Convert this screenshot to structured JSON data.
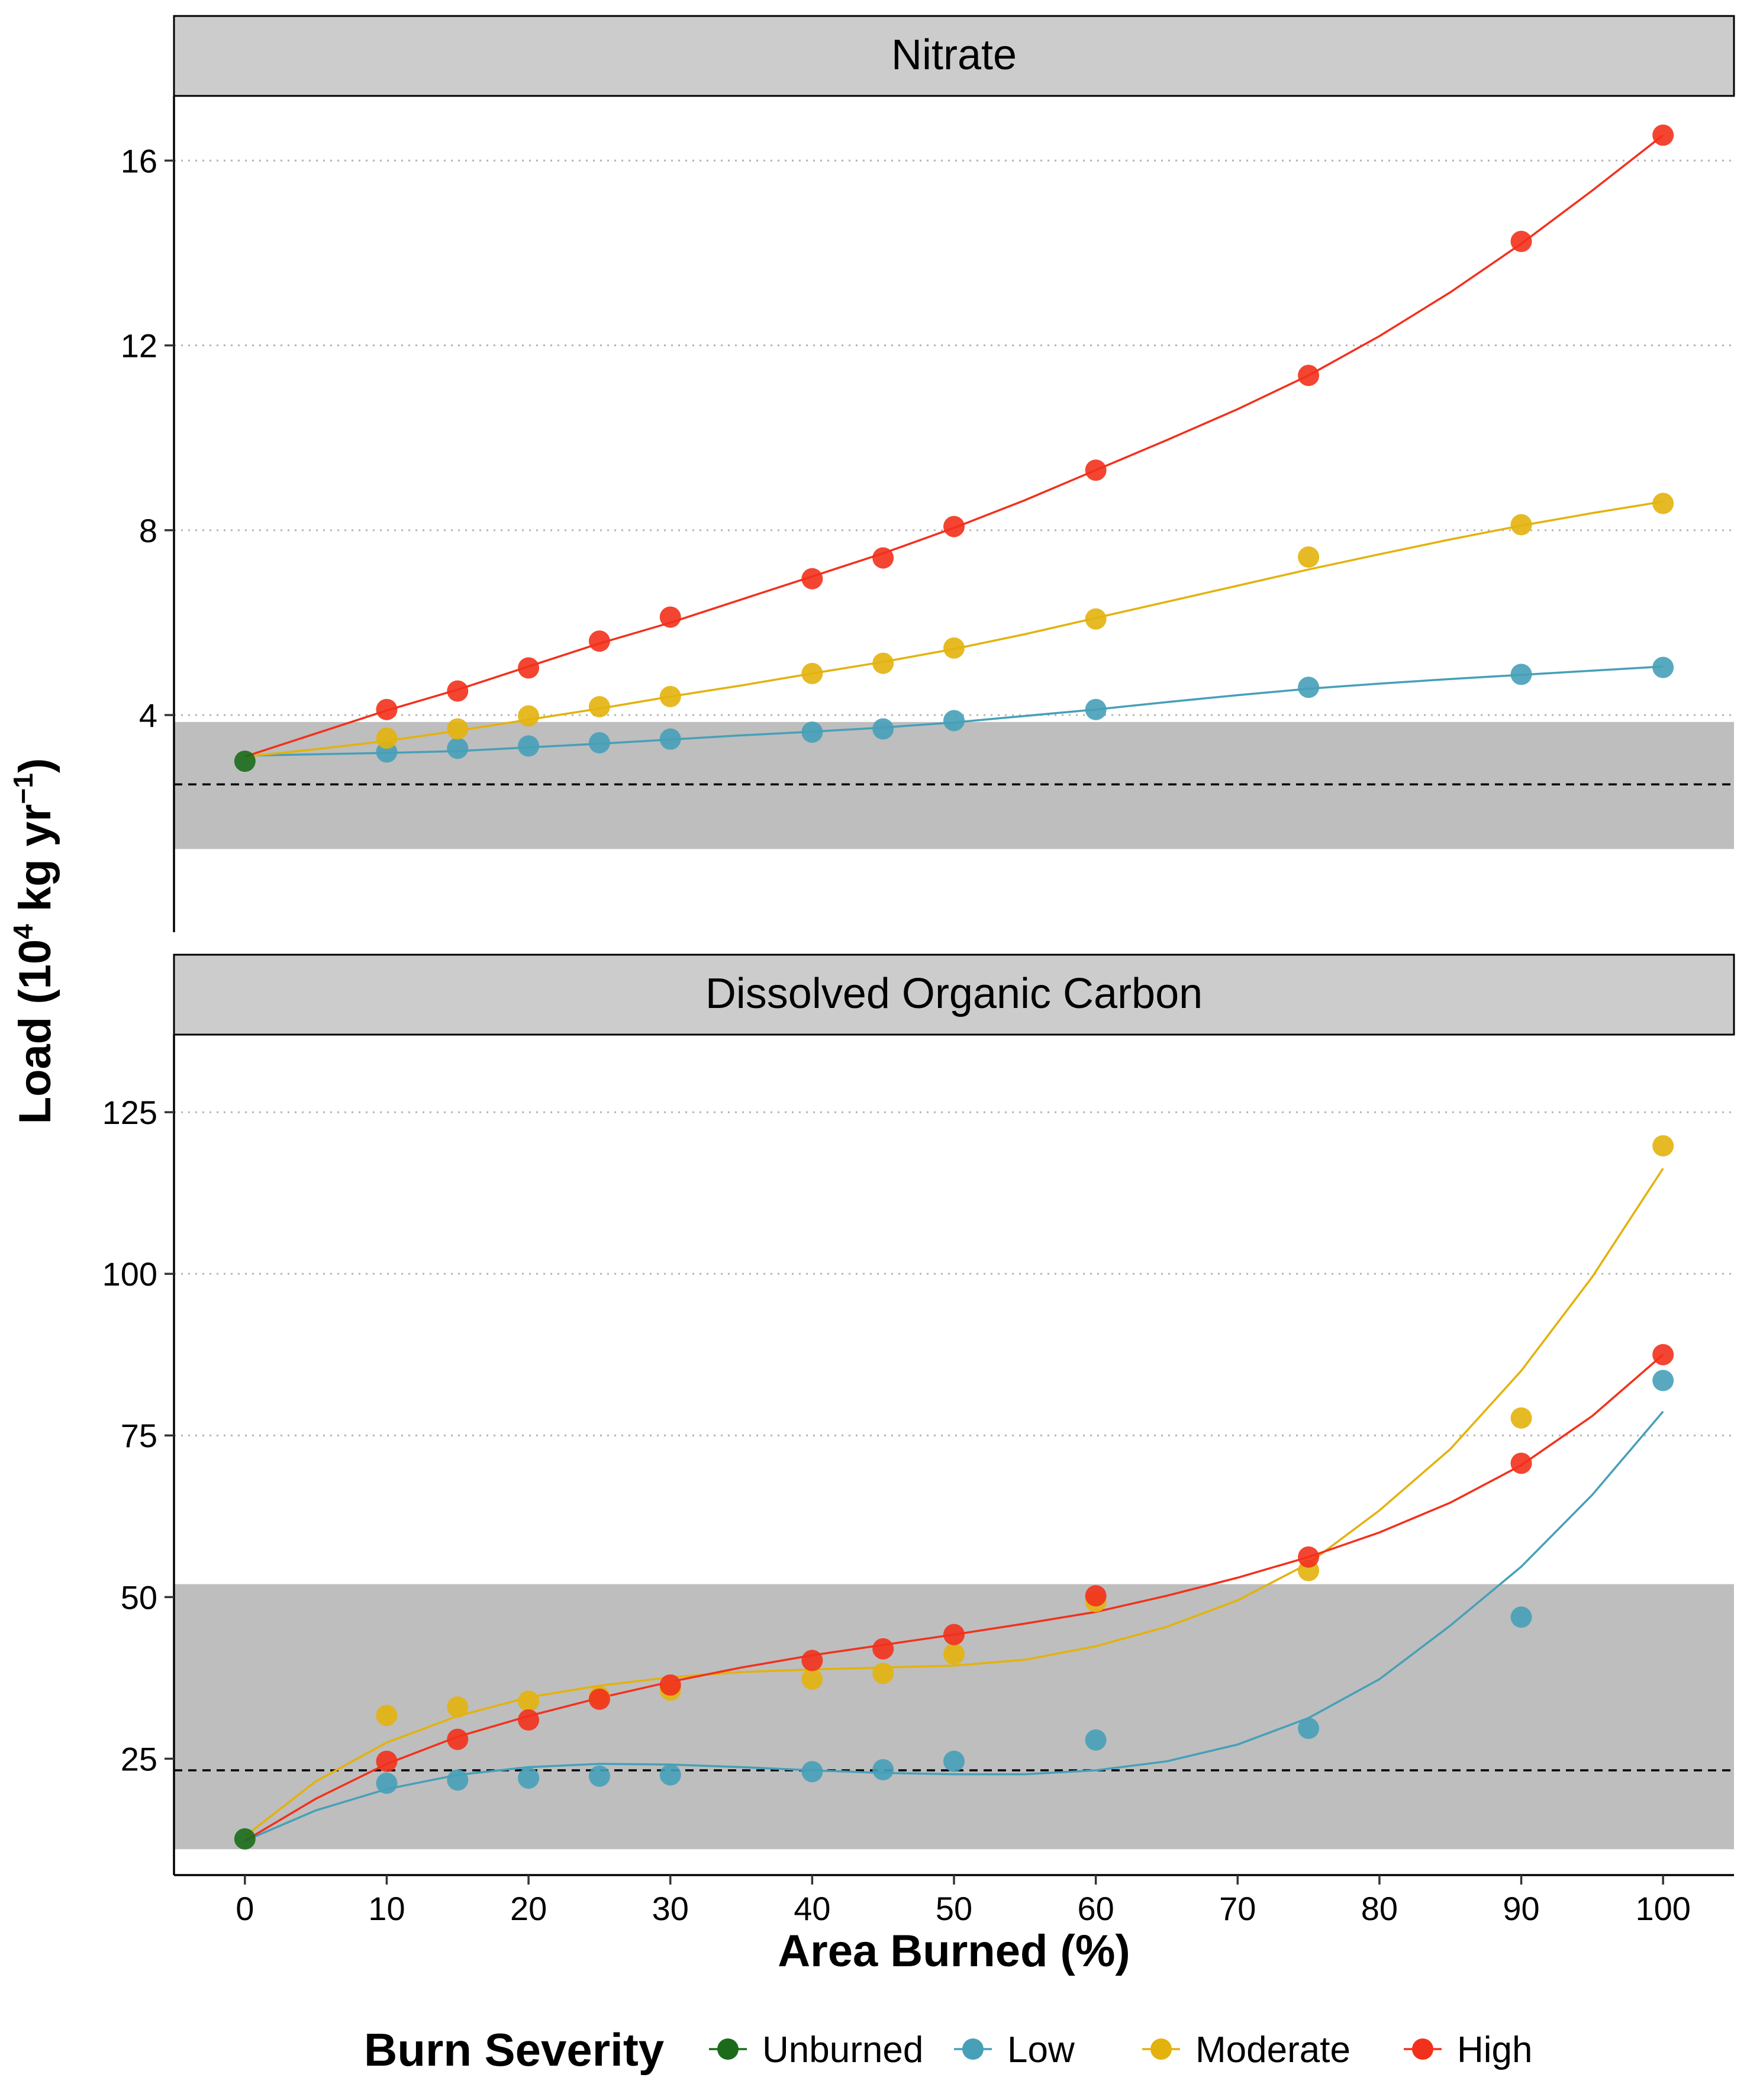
{
  "figure": {
    "ylabel": "Load (10",
    "ylabel_exp": "4",
    "ylabel_unit": " kg yr",
    "ylabel_unit_exp": "−1",
    "ylabel_end": ")",
    "xlabel": "Area Burned (%)",
    "xticks": [
      0,
      10,
      20,
      30,
      40,
      50,
      60,
      70,
      80,
      90,
      100
    ],
    "xlim": [
      -5,
      105
    ]
  },
  "legend": {
    "title": "Burn Severity",
    "position": "bottom",
    "items": [
      {
        "name": "Unburned",
        "color": "#1B6B1B"
      },
      {
        "name": "Low",
        "color": "#46A0B8"
      },
      {
        "name": "Moderate",
        "color": "#E3B20D"
      },
      {
        "name": "High",
        "color": "#F2311C"
      }
    ]
  },
  "chart_data": [
    {
      "type": "scatter",
      "panel": "Nitrate",
      "ylim": [
        -0.7,
        17.4
      ],
      "yticks": [
        4,
        8,
        12,
        16
      ],
      "grid": "horizontal dotted",
      "reference": {
        "line": 2.5,
        "band": [
          1.1,
          3.85
        ]
      },
      "series": [
        {
          "name": "Unburned",
          "color": "#1B6B1B",
          "x": [
            0
          ],
          "y": [
            3.0
          ]
        },
        {
          "name": "Low",
          "color": "#46A0B8",
          "x": [
            10,
            15,
            20,
            25,
            30,
            40,
            45,
            50,
            60,
            75,
            90,
            100
          ],
          "y": [
            3.2,
            3.28,
            3.33,
            3.4,
            3.48,
            3.63,
            3.7,
            3.88,
            4.12,
            4.6,
            4.88,
            5.03
          ]
        },
        {
          "name": "Moderate",
          "color": "#E3B20D",
          "x": [
            10,
            15,
            20,
            25,
            30,
            40,
            45,
            50,
            60,
            75,
            90,
            100
          ],
          "y": [
            3.5,
            3.7,
            3.98,
            4.18,
            4.4,
            4.9,
            5.12,
            5.45,
            6.08,
            7.42,
            8.12,
            8.58
          ]
        },
        {
          "name": "High",
          "color": "#F2311C",
          "x": [
            10,
            15,
            20,
            25,
            30,
            40,
            45,
            50,
            60,
            75,
            90,
            100
          ],
          "y": [
            4.12,
            4.52,
            5.02,
            5.6,
            6.12,
            6.95,
            7.4,
            8.08,
            9.3,
            11.35,
            14.25,
            16.55
          ]
        }
      ],
      "fits": [
        {
          "name": "Low",
          "color": "#46A0B8",
          "x": [
            0,
            5,
            10,
            15,
            20,
            25,
            30,
            35,
            40,
            45,
            50,
            55,
            60,
            65,
            70,
            75,
            80,
            85,
            90,
            95,
            100
          ],
          "y": [
            3.12,
            3.15,
            3.18,
            3.22,
            3.3,
            3.38,
            3.47,
            3.56,
            3.64,
            3.73,
            3.84,
            3.98,
            4.12,
            4.28,
            4.43,
            4.57,
            4.68,
            4.78,
            4.87,
            4.96,
            5.05
          ]
        },
        {
          "name": "Moderate",
          "color": "#E3B20D",
          "x": [
            0,
            5,
            10,
            15,
            20,
            25,
            30,
            35,
            40,
            45,
            50,
            55,
            60,
            65,
            70,
            75,
            80,
            85,
            90,
            95,
            100
          ],
          "y": [
            3.1,
            3.26,
            3.44,
            3.66,
            3.9,
            4.14,
            4.4,
            4.64,
            4.9,
            5.15,
            5.43,
            5.75,
            6.1,
            6.45,
            6.8,
            7.15,
            7.48,
            7.8,
            8.1,
            8.37,
            8.62
          ]
        },
        {
          "name": "High",
          "color": "#F2311C",
          "x": [
            0,
            5,
            10,
            15,
            20,
            25,
            30,
            35,
            40,
            45,
            50,
            55,
            60,
            65,
            70,
            75,
            80,
            85,
            90,
            95,
            100
          ],
          "y": [
            3.1,
            3.6,
            4.1,
            4.55,
            5.05,
            5.55,
            6.0,
            6.5,
            7.0,
            7.5,
            8.05,
            8.65,
            9.3,
            9.95,
            10.62,
            11.35,
            12.2,
            13.15,
            14.2,
            15.35,
            16.55
          ]
        }
      ]
    },
    {
      "type": "scatter",
      "panel": "Dissolved Organic Carbon",
      "ylim": [
        7,
        137
      ],
      "yticks": [
        25,
        50,
        75,
        100,
        125
      ],
      "grid": "horizontal dotted",
      "reference": {
        "line": 23.2,
        "band": [
          11,
          52
        ]
      },
      "series": [
        {
          "name": "Unburned",
          "color": "#1B6B1B",
          "x": [
            0
          ],
          "y": [
            12.6
          ]
        },
        {
          "name": "Low",
          "color": "#46A0B8",
          "x": [
            10,
            15,
            20,
            25,
            30,
            40,
            45,
            50,
            60,
            75,
            90,
            100
          ],
          "y": [
            21.2,
            21.7,
            22.0,
            22.3,
            22.5,
            23.0,
            23.3,
            24.6,
            27.9,
            29.7,
            46.9,
            83.5
          ]
        },
        {
          "name": "Moderate",
          "color": "#E3B20D",
          "x": [
            10,
            15,
            20,
            25,
            30,
            40,
            45,
            50,
            60,
            75,
            90,
            100
          ],
          "y": [
            31.7,
            33.0,
            33.9,
            34.6,
            35.6,
            37.3,
            38.2,
            41.2,
            49.3,
            54.1,
            77.7,
            119.8
          ]
        },
        {
          "name": "High",
          "color": "#F2311C",
          "x": [
            10,
            15,
            20,
            25,
            30,
            40,
            45,
            50,
            60,
            75,
            90,
            100
          ],
          "y": [
            24.6,
            28.0,
            31.0,
            34.2,
            36.4,
            40.2,
            42.0,
            44.2,
            50.2,
            56.2,
            70.7,
            87.5
          ]
        }
      ],
      "fits": [
        {
          "name": "Low",
          "color": "#46A0B8",
          "x": [
            0,
            5,
            10,
            15,
            20,
            25,
            30,
            35,
            40,
            45,
            50,
            55,
            60,
            65,
            70,
            75,
            80,
            85,
            90,
            95,
            100
          ],
          "y": [
            12.3,
            17.0,
            20.3,
            22.5,
            23.7,
            24.2,
            24.1,
            23.7,
            23.2,
            22.8,
            22.6,
            22.6,
            23.2,
            24.6,
            27.2,
            31.3,
            37.3,
            45.6,
            54.7,
            65.8,
            78.7
          ]
        },
        {
          "name": "Moderate",
          "color": "#E3B20D",
          "x": [
            0,
            5,
            10,
            15,
            20,
            25,
            30,
            35,
            40,
            45,
            50,
            55,
            60,
            65,
            70,
            75,
            80,
            85,
            90,
            95,
            100
          ],
          "y": [
            13.0,
            21.5,
            27.5,
            31.6,
            34.5,
            36.3,
            37.6,
            38.4,
            38.8,
            39.1,
            39.4,
            40.3,
            42.4,
            45.4,
            49.5,
            55.2,
            63.4,
            72.9,
            85.0,
            99.5,
            116.3
          ]
        },
        {
          "name": "High",
          "color": "#F2311C",
          "x": [
            0,
            5,
            10,
            15,
            20,
            25,
            30,
            35,
            40,
            45,
            50,
            55,
            60,
            65,
            70,
            75,
            80,
            85,
            90,
            95,
            100
          ],
          "y": [
            12.3,
            18.8,
            24.2,
            28.4,
            31.6,
            34.4,
            36.9,
            39.1,
            41.0,
            42.6,
            44.2,
            45.9,
            47.7,
            50.2,
            53.0,
            56.2,
            60.0,
            64.6,
            70.4,
            78.0,
            87.5
          ]
        }
      ]
    }
  ]
}
